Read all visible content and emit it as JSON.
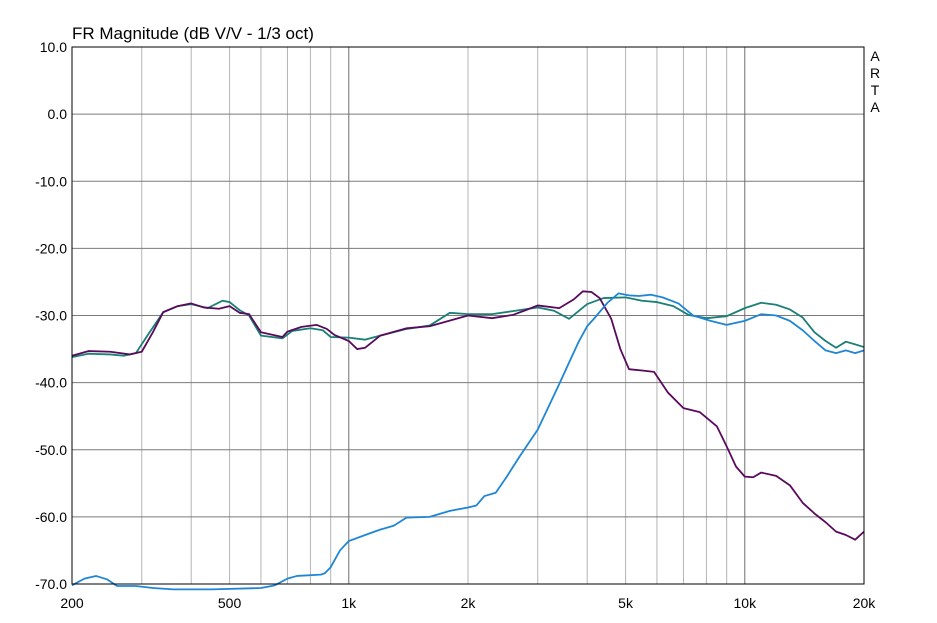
{
  "chart_data": {
    "type": "line",
    "title": "FR Magnitude (dB V/V - 1/3 oct)",
    "brand": [
      "A",
      "R",
      "T",
      "A"
    ],
    "xscale": "log",
    "xlim": [
      200,
      20000
    ],
    "ylim": [
      -70,
      10
    ],
    "grid": true,
    "x_ticks": [
      {
        "value": 200,
        "label": "200"
      },
      {
        "value": 500,
        "label": "500"
      },
      {
        "value": 1000,
        "label": "1k"
      },
      {
        "value": 2000,
        "label": "2k"
      },
      {
        "value": 5000,
        "label": "5k"
      },
      {
        "value": 10000,
        "label": "10k"
      },
      {
        "value": 20000,
        "label": "20k"
      }
    ],
    "y_ticks": [
      {
        "value": 10,
        "label": "10.0"
      },
      {
        "value": 0,
        "label": "0.0"
      },
      {
        "value": -10,
        "label": "-10.0"
      },
      {
        "value": -20,
        "label": "-20.0"
      },
      {
        "value": -30,
        "label": "-30.0"
      },
      {
        "value": -40,
        "label": "-40.0"
      },
      {
        "value": -50,
        "label": "-50.0"
      },
      {
        "value": -60,
        "label": "-60.0"
      },
      {
        "value": -70,
        "label": "-70.0"
      }
    ],
    "series": [
      {
        "color": "#1a7f74",
        "points": [
          [
            200,
            -36.2
          ],
          [
            220,
            -35.7
          ],
          [
            250,
            -35.8
          ],
          [
            270,
            -36.0
          ],
          [
            290,
            -35.6
          ],
          [
            310,
            -33
          ],
          [
            340,
            -29.5
          ],
          [
            370,
            -28.6
          ],
          [
            400,
            -28.3
          ],
          [
            440,
            -28.9
          ],
          [
            480,
            -27.8
          ],
          [
            500,
            -28.0
          ],
          [
            530,
            -29.2
          ],
          [
            560,
            -30
          ],
          [
            600,
            -33
          ],
          [
            680,
            -33.4
          ],
          [
            720,
            -32.3
          ],
          [
            800,
            -31.9
          ],
          [
            860,
            -32.2
          ],
          [
            900,
            -33.2
          ],
          [
            1000,
            -33.3
          ],
          [
            1100,
            -33.6
          ],
          [
            1200,
            -33
          ],
          [
            1400,
            -32.0
          ],
          [
            1600,
            -31.5
          ],
          [
            1800,
            -29.6
          ],
          [
            2000,
            -29.8
          ],
          [
            2300,
            -29.8
          ],
          [
            2700,
            -29.2
          ],
          [
            3000,
            -28.8
          ],
          [
            3300,
            -29.3
          ],
          [
            3600,
            -30.5
          ],
          [
            4000,
            -28.3
          ],
          [
            4400,
            -27.4
          ],
          [
            5000,
            -27.3
          ],
          [
            5500,
            -27.8
          ],
          [
            6000,
            -28.0
          ],
          [
            6600,
            -28.6
          ],
          [
            7200,
            -29.9
          ],
          [
            8000,
            -30.4
          ],
          [
            9000,
            -30.1
          ],
          [
            10000,
            -28.9
          ],
          [
            11000,
            -28.1
          ],
          [
            12000,
            -28.4
          ],
          [
            13000,
            -29.1
          ],
          [
            14000,
            -30.3
          ],
          [
            15000,
            -32.5
          ],
          [
            16000,
            -33.8
          ],
          [
            17000,
            -34.8
          ],
          [
            18000,
            -33.9
          ],
          [
            19000,
            -34.3
          ],
          [
            20000,
            -34.7
          ]
        ]
      },
      {
        "color": "#5a0a5c",
        "points": [
          [
            200,
            -36.0
          ],
          [
            220,
            -35.3
          ],
          [
            250,
            -35.4
          ],
          [
            280,
            -35.8
          ],
          [
            300,
            -35.4
          ],
          [
            320,
            -32.5
          ],
          [
            340,
            -29.5
          ],
          [
            370,
            -28.6
          ],
          [
            400,
            -28.2
          ],
          [
            430,
            -28.8
          ],
          [
            470,
            -29.0
          ],
          [
            500,
            -28.6
          ],
          [
            530,
            -29.6
          ],
          [
            560,
            -29.8
          ],
          [
            600,
            -32.5
          ],
          [
            680,
            -33.2
          ],
          [
            700,
            -32.4
          ],
          [
            760,
            -31.7
          ],
          [
            830,
            -31.4
          ],
          [
            880,
            -32.0
          ],
          [
            920,
            -32.9
          ],
          [
            1000,
            -33.8
          ],
          [
            1050,
            -35.0
          ],
          [
            1100,
            -34.8
          ],
          [
            1200,
            -33.0
          ],
          [
            1400,
            -31.9
          ],
          [
            1600,
            -31.6
          ],
          [
            2000,
            -30.0
          ],
          [
            2300,
            -30.4
          ],
          [
            2600,
            -29.9
          ],
          [
            2800,
            -29.2
          ],
          [
            3000,
            -28.5
          ],
          [
            3400,
            -28.9
          ],
          [
            3700,
            -27.6
          ],
          [
            3900,
            -26.4
          ],
          [
            4100,
            -26.5
          ],
          [
            4300,
            -27.4
          ],
          [
            4600,
            -30.5
          ],
          [
            4850,
            -35
          ],
          [
            5100,
            -38.0
          ],
          [
            5500,
            -38.2
          ],
          [
            5900,
            -38.4
          ],
          [
            6400,
            -41.5
          ],
          [
            7000,
            -43.8
          ],
          [
            7700,
            -44.4
          ],
          [
            8500,
            -46.5
          ],
          [
            9000,
            -49.5
          ],
          [
            9500,
            -52.5
          ],
          [
            10000,
            -54.0
          ],
          [
            10500,
            -54.1
          ],
          [
            11000,
            -53.4
          ],
          [
            12000,
            -53.9
          ],
          [
            13000,
            -55.3
          ],
          [
            14000,
            -57.9
          ],
          [
            15000,
            -59.5
          ],
          [
            16000,
            -60.8
          ],
          [
            17000,
            -62.2
          ],
          [
            18000,
            -62.7
          ],
          [
            19000,
            -63.4
          ],
          [
            20000,
            -62.2
          ]
        ]
      },
      {
        "color": "#1f86d6",
        "points": [
          [
            200,
            -70.2
          ],
          [
            215,
            -69.2
          ],
          [
            230,
            -68.8
          ],
          [
            245,
            -69.3
          ],
          [
            260,
            -70.3
          ],
          [
            290,
            -70.3
          ],
          [
            320,
            -70.6
          ],
          [
            360,
            -70.8
          ],
          [
            450,
            -70.8
          ],
          [
            600,
            -70.6
          ],
          [
            650,
            -70.2
          ],
          [
            700,
            -69.2
          ],
          [
            740,
            -68.8
          ],
          [
            850,
            -68.6
          ],
          [
            870,
            -68.4
          ],
          [
            900,
            -67.5
          ],
          [
            950,
            -65
          ],
          [
            1000,
            -63.6
          ],
          [
            1100,
            -62.7
          ],
          [
            1200,
            -61.9
          ],
          [
            1300,
            -61.3
          ],
          [
            1400,
            -60.1
          ],
          [
            1600,
            -60
          ],
          [
            1800,
            -59.1
          ],
          [
            2000,
            -58.6
          ],
          [
            2100,
            -58.3
          ],
          [
            2200,
            -56.9
          ],
          [
            2350,
            -56.4
          ],
          [
            2500,
            -54.1
          ],
          [
            2700,
            -51
          ],
          [
            3000,
            -47
          ],
          [
            3200,
            -43.5
          ],
          [
            3400,
            -40.2
          ],
          [
            3600,
            -37
          ],
          [
            3800,
            -34
          ],
          [
            4000,
            -31.6
          ],
          [
            4200,
            -30.2
          ],
          [
            4500,
            -28.1
          ],
          [
            4800,
            -26.7
          ],
          [
            5100,
            -27
          ],
          [
            5400,
            -27.1
          ],
          [
            5800,
            -26.9
          ],
          [
            6200,
            -27.3
          ],
          [
            6800,
            -28.2
          ],
          [
            7400,
            -30.0
          ],
          [
            8200,
            -30.8
          ],
          [
            9000,
            -31.4
          ],
          [
            10000,
            -30.8
          ],
          [
            11000,
            -29.8
          ],
          [
            12000,
            -30.0
          ],
          [
            13000,
            -30.8
          ],
          [
            14000,
            -32.2
          ],
          [
            15000,
            -33.8
          ],
          [
            16000,
            -35.2
          ],
          [
            17000,
            -35.6
          ],
          [
            18000,
            -35.2
          ],
          [
            19000,
            -35.6
          ],
          [
            20000,
            -35.2
          ]
        ]
      }
    ]
  }
}
